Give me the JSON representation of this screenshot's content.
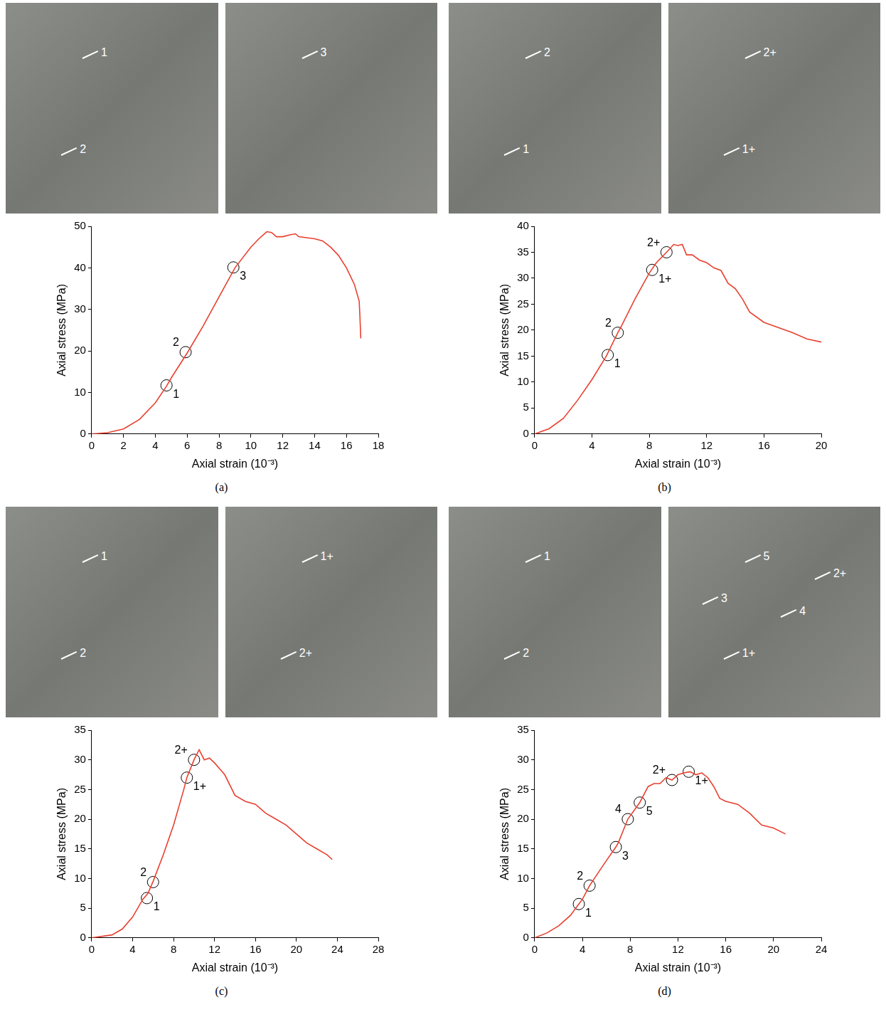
{
  "chart_data": [
    {
      "type": "line",
      "panel_label": "(a)",
      "photos": [
        [
          "1",
          "2"
        ],
        [
          "3"
        ]
      ],
      "x_label": "Axial strain (10⁻³)",
      "y_label": "Axial stress (MPa)",
      "color": "#e8402f",
      "grid": false,
      "xlim": [
        0,
        18
      ],
      "xticks": [
        0,
        2,
        4,
        6,
        8,
        10,
        12,
        14,
        16,
        18
      ],
      "ylim": [
        0,
        50
      ],
      "yticks": [
        0,
        10,
        20,
        30,
        40,
        50
      ],
      "x": [
        0,
        1,
        2,
        3,
        4,
        4.7,
        5,
        6,
        7,
        8,
        9,
        10,
        10.5,
        11,
        11.3,
        11.6,
        12,
        12.5,
        12.8,
        13,
        14,
        14.5,
        15,
        15.5,
        16,
        16.5,
        16.8,
        16.85,
        16.9
      ],
      "values": [
        0,
        0.3,
        1.2,
        3.5,
        7.5,
        11.5,
        13.5,
        19.5,
        26,
        33,
        40,
        45,
        47,
        48.7,
        48.5,
        47.5,
        47.5,
        48,
        48.2,
        47.5,
        47,
        46.5,
        45,
        43,
        40,
        36,
        32,
        28,
        23
      ],
      "annotations": [
        {
          "x": 4.7,
          "y": 11.7,
          "label": "1"
        },
        {
          "x": 5.9,
          "y": 19.7,
          "label": "2"
        },
        {
          "x": 8.9,
          "y": 40.1,
          "label": "3"
        }
      ]
    },
    {
      "type": "line",
      "panel_label": "(b)",
      "photos": [
        [
          "2",
          "1"
        ],
        [
          "2+",
          "1+"
        ]
      ],
      "x_label": "Axial strain (10⁻³)",
      "y_label": "Axial stress (MPa)",
      "color": "#e8402f",
      "grid": false,
      "xlim": [
        0,
        20
      ],
      "xticks": [
        0,
        4,
        8,
        12,
        16,
        20
      ],
      "ylim": [
        0,
        40
      ],
      "yticks": [
        0,
        5,
        10,
        15,
        20,
        25,
        30,
        35,
        40
      ],
      "x": [
        0,
        1,
        2,
        3,
        4,
        5,
        5.8,
        6,
        7,
        8,
        8.5,
        9.2,
        9.7,
        10,
        10.3,
        10.6,
        11,
        11.5,
        12,
        12.5,
        13,
        13.5,
        14,
        14.5,
        15,
        16,
        17,
        18,
        19,
        20
      ],
      "values": [
        0,
        1,
        3,
        6.5,
        10.5,
        15,
        19.5,
        20.5,
        26,
        31,
        33,
        35,
        36.5,
        36.3,
        36.5,
        34.5,
        34.5,
        33.5,
        33,
        32,
        31.5,
        29,
        28,
        26,
        23.5,
        21.5,
        20.5,
        19.5,
        18.3,
        17.7
      ],
      "annotations": [
        {
          "x": 5.1,
          "y": 15.2,
          "label": "1"
        },
        {
          "x": 5.8,
          "y": 19.5,
          "label": "2"
        },
        {
          "x": 8.2,
          "y": 31.6,
          "label": "1+"
        },
        {
          "x": 9.2,
          "y": 35,
          "label": "2+"
        }
      ]
    },
    {
      "type": "line",
      "panel_label": "(c)",
      "photos": [
        [
          "1",
          "2"
        ],
        [
          "1+",
          "2+"
        ]
      ],
      "x_label": "Axial strain (10⁻³)",
      "y_label": "Axial stress (MPa)",
      "color": "#e8402f",
      "grid": false,
      "xlim": [
        0,
        28
      ],
      "xticks": [
        0,
        4,
        8,
        12,
        16,
        20,
        24,
        28
      ],
      "ylim": [
        0,
        35
      ],
      "yticks": [
        0,
        5,
        10,
        15,
        20,
        25,
        30,
        35
      ],
      "x": [
        0,
        2,
        3,
        4,
        5,
        5.5,
        6,
        7,
        8,
        9,
        9.3,
        10,
        10.5,
        11,
        11.5,
        12,
        12.5,
        13,
        14,
        15,
        16,
        17,
        18,
        19,
        20,
        21,
        22,
        23,
        23.5
      ],
      "values": [
        0,
        0.5,
        1.5,
        3.5,
        6.5,
        7.5,
        9.5,
        14,
        19,
        25,
        27,
        30,
        31.7,
        30,
        30.3,
        29.5,
        28.5,
        27.5,
        24,
        23,
        22.5,
        21,
        20,
        19,
        17.5,
        16,
        15,
        14,
        13.2
      ],
      "annotations": [
        {
          "x": 5.4,
          "y": 6.7,
          "label": "1"
        },
        {
          "x": 6,
          "y": 9.4,
          "label": "2"
        },
        {
          "x": 9.3,
          "y": 27,
          "label": "1+"
        },
        {
          "x": 10,
          "y": 30,
          "label": "2+"
        }
      ]
    },
    {
      "type": "line",
      "panel_label": "(d)",
      "photos": [
        [
          "1",
          "2"
        ],
        [
          "5",
          "1+",
          "4",
          "3",
          "2+"
        ]
      ],
      "x_label": "Axial strain (10⁻³)",
      "y_label": "Axial stress (MPa)",
      "color": "#e8402f",
      "grid": false,
      "xlim": [
        0,
        24
      ],
      "xticks": [
        0,
        4,
        8,
        12,
        16,
        20,
        24
      ],
      "ylim": [
        0,
        35
      ],
      "yticks": [
        0,
        5,
        10,
        15,
        20,
        25,
        30,
        35
      ],
      "x": [
        0,
        1,
        2,
        3,
        3.7,
        4,
        4.6,
        5,
        6,
        6.8,
        7,
        7.8,
        8.8,
        9.5,
        10,
        10.5,
        11,
        11.5,
        12,
        12.5,
        13,
        13.5,
        14,
        14.5,
        15,
        15.5,
        16,
        17,
        18,
        19,
        20,
        21
      ],
      "values": [
        0,
        0.8,
        2,
        3.8,
        5.7,
        6.5,
        8.8,
        10,
        13,
        15.3,
        16,
        20,
        22.8,
        25.5,
        26,
        26,
        27,
        26.6,
        27.5,
        27.8,
        28,
        27.5,
        27.8,
        27,
        25.5,
        23.5,
        23,
        22.5,
        21,
        19,
        18.5,
        17.5
      ],
      "annotations": [
        {
          "x": 3.7,
          "y": 5.7,
          "label": "1"
        },
        {
          "x": 4.6,
          "y": 8.8,
          "label": "2"
        },
        {
          "x": 6.8,
          "y": 15.3,
          "label": "3"
        },
        {
          "x": 7.8,
          "y": 20,
          "label": "4"
        },
        {
          "x": 8.8,
          "y": 22.8,
          "label": "5"
        },
        {
          "x": 11.5,
          "y": 26.6,
          "label": "2+"
        },
        {
          "x": 12.9,
          "y": 28,
          "label": "1+"
        }
      ]
    }
  ]
}
